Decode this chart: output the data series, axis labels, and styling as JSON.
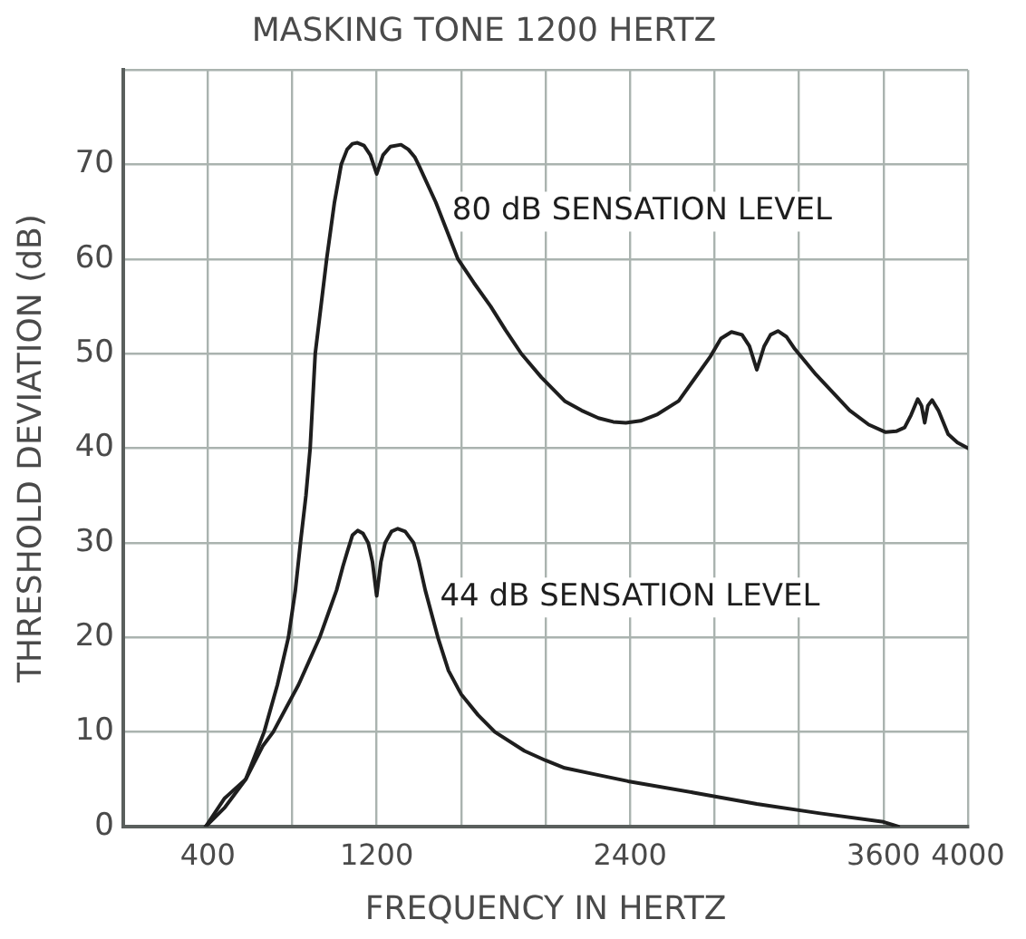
{
  "chart_data": {
    "type": "line",
    "title": "MASKING TONE 1200 HERTZ",
    "xlabel": "FREQUENCY IN HERTZ",
    "ylabel": "THRESHOLD DEVIATION (dB)",
    "xlim": [
      0,
      4000
    ],
    "xticks": [
      400,
      {
        "value": 800,
        "label": null
      },
      1200,
      {
        "value": 1600,
        "label": null
      },
      {
        "value": 2000,
        "label": null
      },
      2400,
      {
        "value": 2800,
        "label": null
      },
      {
        "value": 3200,
        "label": null
      },
      3600,
      4000
    ],
    "ylim": [
      0,
      80
    ],
    "yticks": [
      0,
      10,
      20,
      30,
      40,
      50,
      60,
      70,
      {
        "value": 80,
        "label": null
      }
    ],
    "grid": true,
    "series": [
      {
        "name": "80 dB SENSATION LEVEL",
        "color": "#1e1e1e",
        "x": [
          390,
          480,
          580,
          667,
          730,
          782,
          815,
          839,
          865,
          885,
          909,
          963,
          1000,
          1032,
          1060,
          1085,
          1109,
          1140,
          1170,
          1200,
          1230,
          1265,
          1315,
          1350,
          1380,
          1400,
          1480,
          1585,
          1660,
          1740,
          1810,
          1885,
          1980,
          2090,
          2170,
          2250,
          2320,
          2380,
          2450,
          2530,
          2630,
          2700,
          2780,
          2830,
          2880,
          2930,
          2965,
          3000,
          3035,
          3065,
          3100,
          3140,
          3180,
          3280,
          3440,
          3530,
          3610,
          3660,
          3700,
          3730,
          3762,
          3780,
          3795,
          3810,
          3830,
          3860,
          3906,
          3950,
          4000
        ],
        "values": [
          0,
          2,
          5,
          10,
          15,
          20,
          25,
          30,
          35,
          40,
          50,
          60,
          66,
          70,
          71.6,
          72.2,
          72.3,
          72,
          71,
          69,
          71,
          71.9,
          72.1,
          71.6,
          70.8,
          69.9,
          66,
          60,
          57.5,
          55,
          52.5,
          50,
          47.5,
          45,
          44,
          43.2,
          42.8,
          42.7,
          42.9,
          43.6,
          45,
          47.2,
          49.7,
          51.6,
          52.3,
          52,
          50.8,
          48.3,
          50.8,
          52,
          52.4,
          51.8,
          50.5,
          47.8,
          44,
          42.5,
          41.7,
          41.8,
          42.2,
          43.5,
          45.2,
          44.5,
          42.7,
          44.5,
          45.1,
          44,
          41.5,
          40.6,
          40
        ]
      },
      {
        "name": "44 dB SENSATION LEVEL",
        "color": "#1e1e1e",
        "x": [
          390,
          480,
          580,
          660,
          710,
          770,
          830,
          880,
          930,
          970,
          1010,
          1040,
          1060,
          1085,
          1110,
          1135,
          1160,
          1180,
          1200,
          1220,
          1240,
          1270,
          1300,
          1335,
          1375,
          1400,
          1430,
          1460,
          1490,
          1540,
          1600,
          1680,
          1760,
          1900,
          2000,
          2090,
          2240,
          2390,
          2700,
          3000,
          3300,
          3600,
          3670
        ],
        "values": [
          0,
          3,
          5,
          8.5,
          10,
          12.5,
          15,
          17.5,
          20,
          22.5,
          25,
          27.5,
          29,
          30.8,
          31.3,
          31,
          30,
          28,
          24.4,
          28,
          30,
          31.2,
          31.5,
          31.2,
          30,
          28,
          25,
          22.5,
          20,
          16.5,
          14,
          11.8,
          10,
          8,
          7,
          6.2,
          5.5,
          4.8,
          3.6,
          2.4,
          1.4,
          0.5,
          0
        ]
      }
    ]
  }
}
